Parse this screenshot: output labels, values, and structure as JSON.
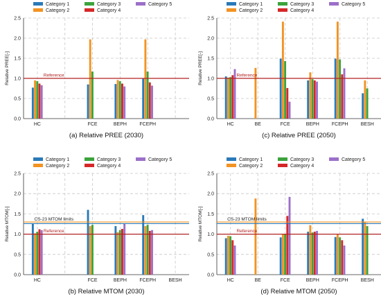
{
  "colors": {
    "Category 1": "#2a7ab8",
    "Category 2": "#f39322",
    "Category 3": "#3ca33c",
    "Category 4": "#d62728",
    "Category 5": "#9c6fc9",
    "reference": "#b22222",
    "cs23": "#f39322"
  },
  "chart_data": [
    {
      "type": "bar",
      "caption": "(a) Relative PREE (2030)",
      "ylabel": "Relative PREE[-]",
      "ylim": [
        0,
        2.5
      ],
      "yticks": [
        "0.0",
        "0.5",
        "1.0",
        "1.5",
        "2.0",
        "2.5"
      ],
      "grid": true,
      "legend": "top",
      "categories": [
        "HC",
        "",
        "FCE",
        "BEPH",
        "FCEPH",
        ""
      ],
      "series": [
        {
          "name": "Category 1",
          "values": [
            0.77,
            null,
            0.85,
            0.86,
            0.99,
            null
          ]
        },
        {
          "name": "Category 2",
          "values": [
            0.95,
            null,
            1.97,
            0.96,
            1.97,
            null
          ]
        },
        {
          "name": "Category 3",
          "values": [
            0.93,
            null,
            1.17,
            0.93,
            1.17,
            null
          ]
        },
        {
          "name": "Category 4",
          "values": [
            0.87,
            null,
            null,
            0.87,
            0.9,
            null
          ]
        },
        {
          "name": "Category 5",
          "values": [
            0.83,
            null,
            null,
            0.8,
            0.82,
            null
          ]
        }
      ],
      "reference_lines": [
        {
          "label": "Reference",
          "value": 1.0
        }
      ]
    },
    {
      "type": "bar",
      "caption": "(c) Relative PREE (2050)",
      "ylabel": "Relative PREE[-]",
      "ylim": [
        0,
        2.5
      ],
      "yticks": [
        "0.0",
        "0.5",
        "1.0",
        "1.5",
        "2.0",
        "2.5"
      ],
      "grid": true,
      "legend": "top",
      "categories": [
        "HC",
        "BE",
        "FCE",
        "BEPH",
        "FCEPH",
        "BESH"
      ],
      "series": [
        {
          "name": "Category 1",
          "values": [
            1.05,
            null,
            1.49,
            0.95,
            1.49,
            0.63
          ]
        },
        {
          "name": "Category 2",
          "values": [
            1.02,
            1.26,
            2.41,
            1.15,
            2.41,
            0.95
          ]
        },
        {
          "name": "Category 3",
          "values": [
            1.03,
            null,
            1.43,
            0.98,
            1.47,
            0.75
          ]
        },
        {
          "name": "Category 4",
          "values": [
            1.08,
            null,
            0.76,
            0.95,
            1.1,
            null
          ]
        },
        {
          "name": "Category 5",
          "values": [
            1.23,
            null,
            0.42,
            0.92,
            1.25,
            null
          ]
        }
      ],
      "reference_lines": [
        {
          "label": "Reference",
          "value": 1.0
        }
      ]
    },
    {
      "type": "bar",
      "caption": "(b) Relative MTOM (2030)",
      "ylabel": "Relative MTOM[-]",
      "ylim": [
        0,
        2.5
      ],
      "yticks": [
        "0.0",
        "0.5",
        "1.0",
        "1.5",
        "2.0",
        "2.5"
      ],
      "grid": true,
      "legend": "top",
      "categories": [
        "HC",
        "",
        "FCE",
        "BEPH",
        "FCEPH",
        "BESH"
      ],
      "series": [
        {
          "name": "Category 1",
          "values": [
            1.25,
            null,
            1.6,
            1.2,
            1.47,
            null
          ]
        },
        {
          "name": "Category 2",
          "values": [
            1.02,
            null,
            1.2,
            1.05,
            1.2,
            null
          ]
        },
        {
          "name": "Category 3",
          "values": [
            1.06,
            null,
            1.23,
            1.1,
            1.23,
            null
          ]
        },
        {
          "name": "Category 4",
          "values": [
            1.12,
            null,
            null,
            1.13,
            1.08,
            null
          ]
        },
        {
          "name": "Category 5",
          "values": [
            1.1,
            null,
            null,
            1.25,
            1.1,
            null
          ]
        }
      ],
      "reference_lines": [
        {
          "label": "Reference",
          "value": 1.0
        },
        {
          "label": "CS-23 MTOM limits",
          "value": 1.28
        }
      ]
    },
    {
      "type": "bar",
      "caption": "(d) Relative MTOM (2050)",
      "ylabel": "Relative MTOM[-]",
      "ylim": [
        0,
        2.5
      ],
      "yticks": [
        "0.0",
        "0.5",
        "1.0",
        "1.5",
        "2.0",
        "2.5"
      ],
      "grid": true,
      "legend": "top",
      "categories": [
        "HC",
        "BE",
        "FCE",
        "BEPH",
        "FCEPH",
        "BESH"
      ],
      "series": [
        {
          "name": "Category 1",
          "values": [
            0.9,
            null,
            0.92,
            1.06,
            0.93,
            1.38
          ]
        },
        {
          "name": "Category 2",
          "values": [
            0.96,
            1.88,
            1.0,
            1.22,
            1.0,
            1.3
          ]
        },
        {
          "name": "Category 3",
          "values": [
            0.95,
            null,
            1.0,
            1.04,
            0.92,
            1.2
          ]
        },
        {
          "name": "Category 4",
          "values": [
            0.85,
            null,
            1.45,
            1.06,
            0.85,
            null
          ]
        },
        {
          "name": "Category 5",
          "values": [
            0.72,
            null,
            1.92,
            1.08,
            0.72,
            null
          ]
        }
      ],
      "reference_lines": [
        {
          "label": "Reference",
          "value": 1.0
        },
        {
          "label": "CS-23 MTOM limits",
          "value": 1.28
        }
      ]
    }
  ]
}
